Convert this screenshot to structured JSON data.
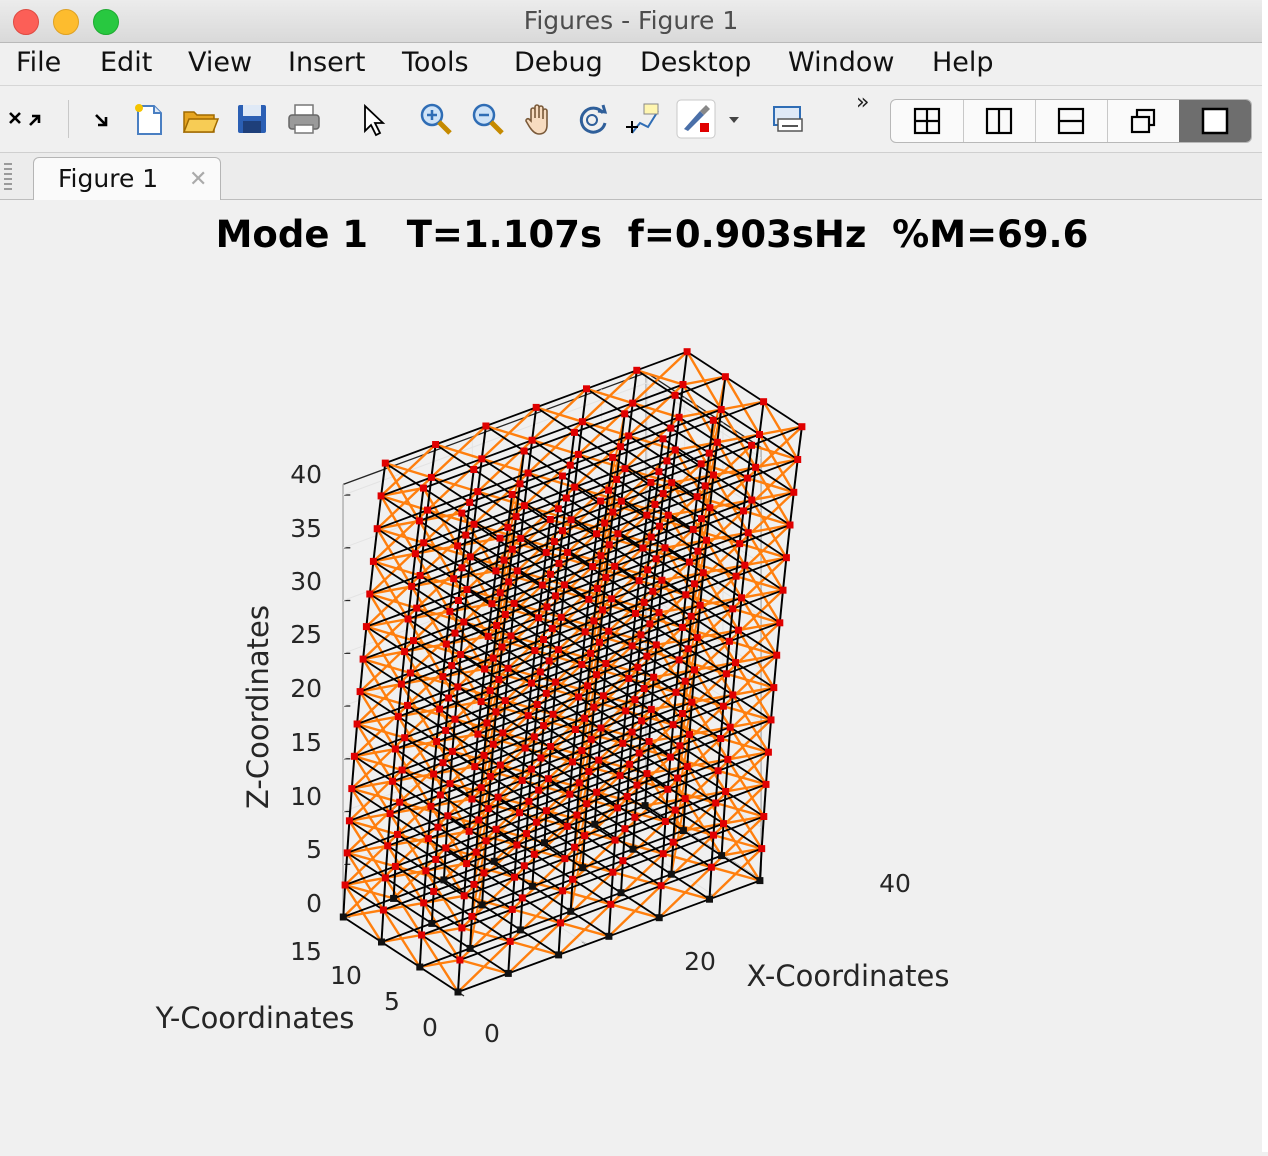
{
  "window": {
    "title": "Figures - Figure 1"
  },
  "menu": [
    "File",
    "Edit",
    "View",
    "Insert",
    "Tools",
    "Debug",
    "Desktop",
    "Window",
    "Help"
  ],
  "toolbar": {
    "overflow": "»"
  },
  "tab": {
    "label": "Figure 1",
    "close": "✕"
  },
  "figure": {
    "title": "Mode 1   T=1.107s  f=0.903sHz  %M=69.6",
    "zlabel": "Z-Coordinates",
    "xlabel": "X-Coordinates",
    "ylabel": "Y-Coordinates",
    "zticks": [
      "0",
      "5",
      "10",
      "15",
      "20",
      "25",
      "30",
      "35",
      "40"
    ],
    "yticks": [
      "0",
      "5",
      "10",
      "15"
    ],
    "xticks": [
      "0",
      "20",
      "40"
    ]
  },
  "colors": {
    "frame": "#000000",
    "brace": "#ff7f0e",
    "node": "#e00000"
  }
}
